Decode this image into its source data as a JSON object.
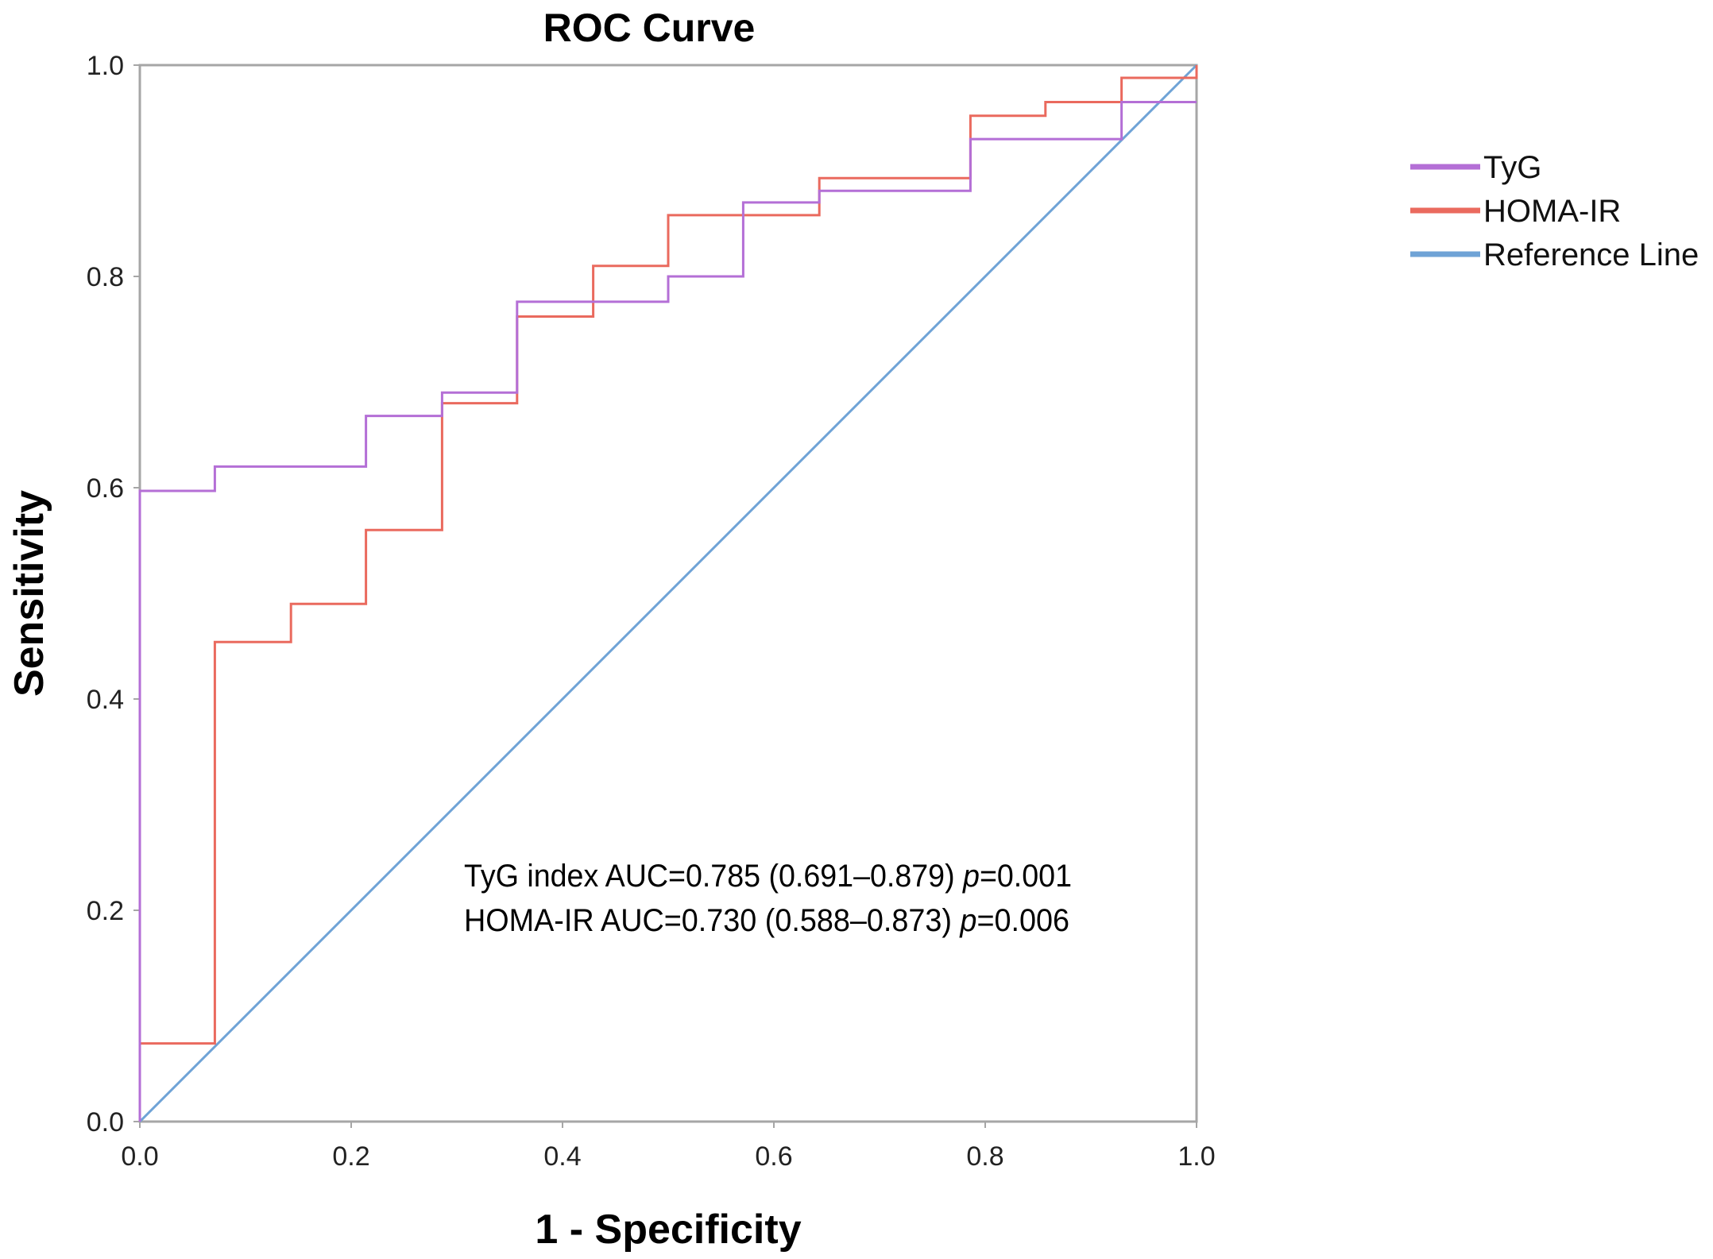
{
  "chart_data": {
    "type": "line",
    "title": "ROC Curve",
    "xlabel": "1 - Specificity",
    "ylabel": "Sensitivity",
    "xlim": [
      0,
      1
    ],
    "ylim": [
      0,
      1
    ],
    "x_ticks": [
      "0.0",
      "0.2",
      "0.4",
      "0.6",
      "0.8",
      "1.0"
    ],
    "y_ticks": [
      "0.0",
      "0.2",
      "0.4",
      "0.6",
      "0.8",
      "1.0"
    ],
    "grid": false,
    "legend_position": "right",
    "series": [
      {
        "name": "TyG",
        "color": "#b46fd6",
        "x": [
          0,
          0,
          0.071,
          0.071,
          0.214,
          0.214,
          0.286,
          0.286,
          0.357,
          0.357,
          0.5,
          0.5,
          0.571,
          0.571,
          0.643,
          0.643,
          0.786,
          0.786,
          0.929,
          0.929,
          1.0
        ],
        "y": [
          0,
          0.597,
          0.597,
          0.62,
          0.62,
          0.668,
          0.668,
          0.69,
          0.69,
          0.776,
          0.776,
          0.8,
          0.8,
          0.87,
          0.87,
          0.881,
          0.881,
          0.93,
          0.93,
          0.965,
          0.965
        ]
      },
      {
        "name": "HOMA-IR",
        "color": "#ea6a5e",
        "x": [
          0,
          0,
          0.071,
          0.071,
          0.143,
          0.143,
          0.214,
          0.214,
          0.286,
          0.286,
          0.357,
          0.357,
          0.429,
          0.429,
          0.5,
          0.5,
          0.643,
          0.643,
          0.786,
          0.786,
          0.857,
          0.857,
          0.929,
          0.929,
          1.0,
          1.0
        ],
        "y": [
          0,
          0.074,
          0.074,
          0.454,
          0.454,
          0.49,
          0.49,
          0.56,
          0.56,
          0.68,
          0.68,
          0.762,
          0.762,
          0.81,
          0.81,
          0.858,
          0.858,
          0.893,
          0.893,
          0.952,
          0.952,
          0.965,
          0.965,
          0.988,
          0.988,
          1.0
        ]
      },
      {
        "name": "Reference Line",
        "color": "#6fa3d6",
        "x": [
          0,
          1
        ],
        "y": [
          0,
          1
        ]
      }
    ],
    "annotations": {
      "line1": {
        "prefix": "TyG index AUC=0.785 (0.691–0.879) ",
        "italic": "p",
        "suffix": "=0.001"
      },
      "line2": {
        "prefix": "HOMA-IR AUC=0.730 (0.588–0.873) ",
        "italic": "p",
        "suffix": "=0.006"
      }
    }
  }
}
